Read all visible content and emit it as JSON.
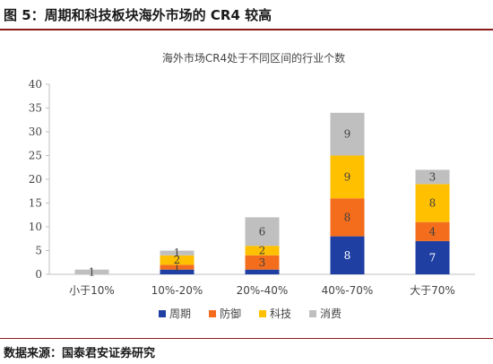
{
  "figure": {
    "title": "图 5：周期和科技板块海外市场的 CR4 较高",
    "source": "数据来源：国泰君安证券研究"
  },
  "chart_data": {
    "type": "bar",
    "stacked": true,
    "title": "海外市场CR4处于不同区间的行业个数",
    "xlabel": "",
    "ylabel": "",
    "ylim": [
      0,
      40
    ],
    "yticks": [
      0,
      5,
      10,
      15,
      20,
      25,
      30,
      35,
      40
    ],
    "grid": false,
    "legend_position": "bottom",
    "categories": [
      "小于10%",
      "10%-20%",
      "20%-40%",
      "40%-70%",
      "大于70%"
    ],
    "series": [
      {
        "name": "周期",
        "color": "#1f3fa3",
        "values": [
          0,
          1,
          1,
          8,
          7
        ],
        "labels": [
          "",
          "",
          "",
          "8",
          "7"
        ]
      },
      {
        "name": "防御",
        "color": "#f36d1c",
        "values": [
          0,
          1,
          3,
          8,
          4
        ],
        "labels": [
          "",
          "1",
          "3",
          "8",
          "4"
        ]
      },
      {
        "name": "科技",
        "color": "#ffc000",
        "values": [
          0,
          2,
          2,
          9,
          8
        ],
        "labels": [
          "",
          "2",
          "2",
          "9",
          "8"
        ]
      },
      {
        "name": "消费",
        "color": "#bfbfbf",
        "values": [
          1,
          1,
          6,
          9,
          3
        ],
        "labels": [
          "1",
          "1",
          "6",
          "9",
          "3"
        ]
      }
    ]
  }
}
